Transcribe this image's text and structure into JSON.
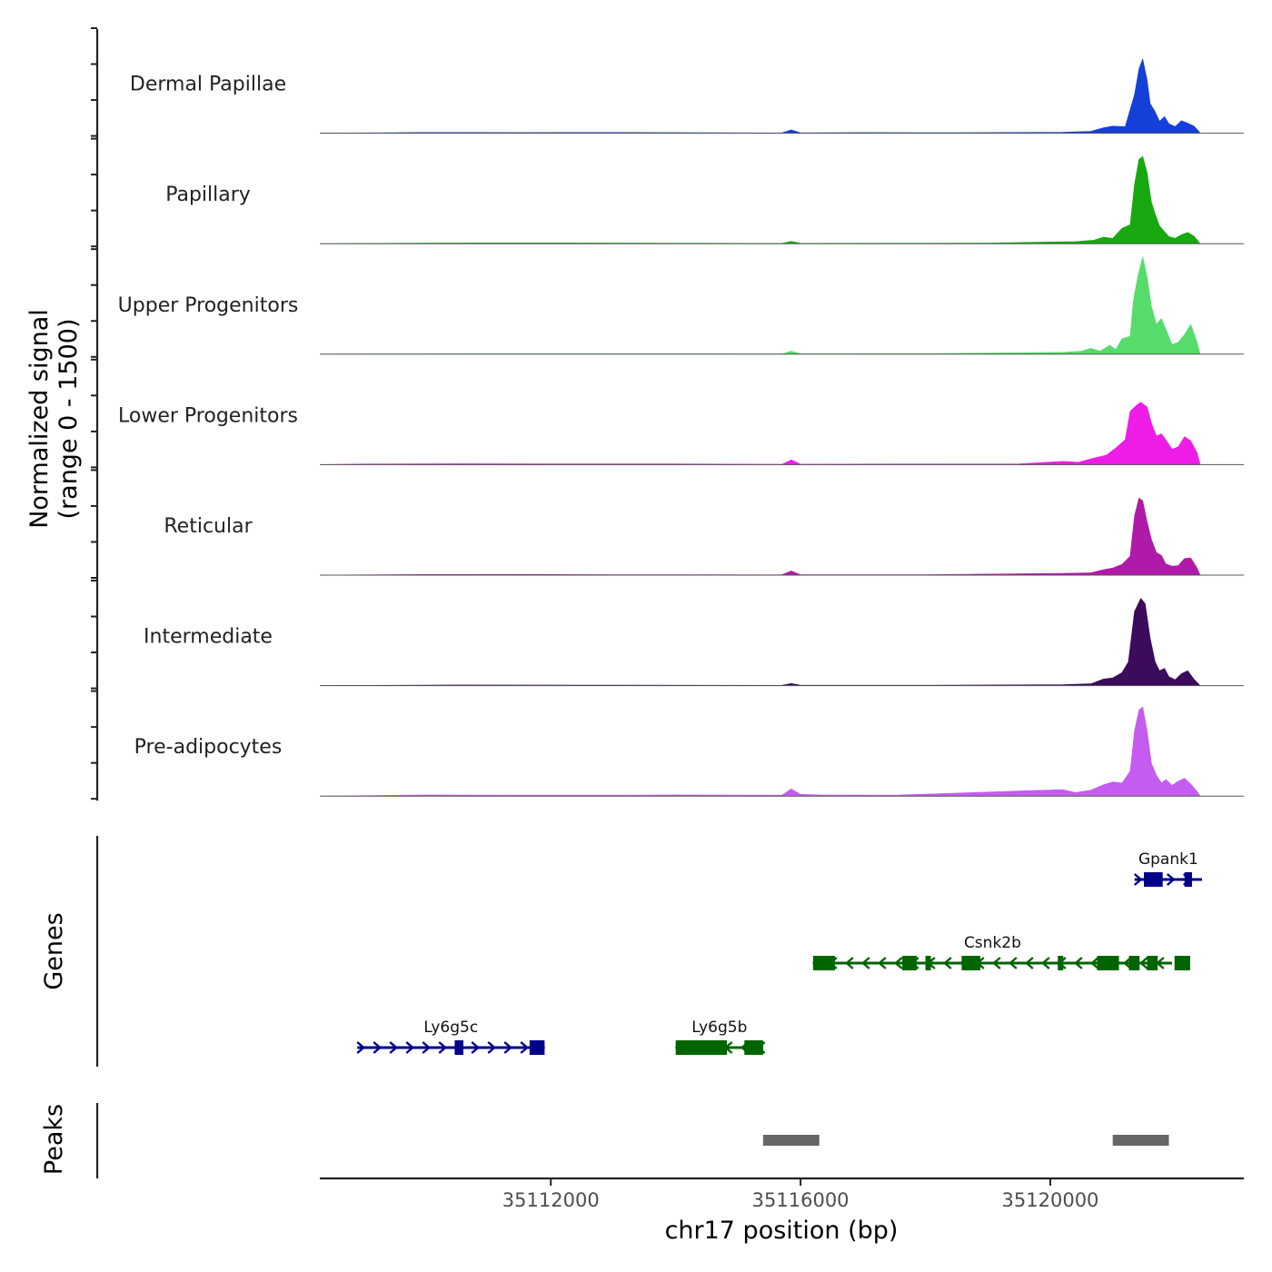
{
  "chart_data": {
    "type": "area",
    "title": "",
    "chromosome": "chr17",
    "xlabel": "chr17 position (bp)",
    "ylabel": "Normalized signal",
    "ylabel_range": "(range 0 - 1500)",
    "xlim": [
      35108300,
      35123100
    ],
    "ylim": [
      0,
      1500
    ],
    "x_ticks": [
      {
        "value": 35112000,
        "label": "35112000"
      },
      {
        "value": 35116000,
        "label": "35116000"
      },
      {
        "value": 35120000,
        "label": "35120000"
      }
    ],
    "series": [
      {
        "name": "Dermal Papillae",
        "color": "#1540d8",
        "points": [
          [
            35108300,
            0
          ],
          [
            35110000,
            12
          ],
          [
            35111500,
            10
          ],
          [
            35113000,
            12
          ],
          [
            35115700,
            4
          ],
          [
            35115850,
            55
          ],
          [
            35116000,
            6
          ],
          [
            35117000,
            10
          ],
          [
            35118500,
            8
          ],
          [
            35120200,
            15
          ],
          [
            35120650,
            30
          ],
          [
            35120850,
            90
          ],
          [
            35121000,
            120
          ],
          [
            35121200,
            110
          ],
          [
            35121350,
            650
          ],
          [
            35121420,
            1080
          ],
          [
            35121480,
            1250
          ],
          [
            35121550,
            900
          ],
          [
            35121600,
            500
          ],
          [
            35121680,
            360
          ],
          [
            35121750,
            200
          ],
          [
            35121830,
            280
          ],
          [
            35121900,
            160
          ],
          [
            35122000,
            110
          ],
          [
            35122100,
            210
          ],
          [
            35122200,
            170
          ],
          [
            35122300,
            120
          ],
          [
            35122380,
            30
          ],
          [
            35122400,
            0
          ]
        ]
      },
      {
        "name": "Papillary",
        "color": "#17a90f",
        "points": [
          [
            35108300,
            0
          ],
          [
            35110000,
            10
          ],
          [
            35112000,
            12
          ],
          [
            35114000,
            8
          ],
          [
            35115700,
            4
          ],
          [
            35115850,
            40
          ],
          [
            35116000,
            6
          ],
          [
            35117500,
            8
          ],
          [
            35119000,
            10
          ],
          [
            35120400,
            35
          ],
          [
            35120700,
            60
          ],
          [
            35120850,
            110
          ],
          [
            35121000,
            90
          ],
          [
            35121150,
            260
          ],
          [
            35121280,
            320
          ],
          [
            35121350,
            1000
          ],
          [
            35121420,
            1420
          ],
          [
            35121480,
            1470
          ],
          [
            35121550,
            1200
          ],
          [
            35121620,
            700
          ],
          [
            35121680,
            500
          ],
          [
            35121750,
            300
          ],
          [
            35121830,
            200
          ],
          [
            35121900,
            120
          ],
          [
            35122000,
            90
          ],
          [
            35122100,
            150
          ],
          [
            35122200,
            190
          ],
          [
            35122300,
            130
          ],
          [
            35122400,
            0
          ]
        ]
      },
      {
        "name": "Upper Progenitors",
        "color": "#56dc6b",
        "points": [
          [
            35108300,
            0
          ],
          [
            35110500,
            6
          ],
          [
            35113000,
            6
          ],
          [
            35115700,
            4
          ],
          [
            35115850,
            50
          ],
          [
            35116000,
            6
          ],
          [
            35118000,
            8
          ],
          [
            35120200,
            30
          ],
          [
            35120500,
            50
          ],
          [
            35120650,
            100
          ],
          [
            35120800,
            50
          ],
          [
            35120950,
            150
          ],
          [
            35121050,
            80
          ],
          [
            35121150,
            260
          ],
          [
            35121280,
            300
          ],
          [
            35121330,
            900
          ],
          [
            35121400,
            1300
          ],
          [
            35121480,
            1640
          ],
          [
            35121550,
            1300
          ],
          [
            35121620,
            800
          ],
          [
            35121700,
            500
          ],
          [
            35121780,
            600
          ],
          [
            35121850,
            420
          ],
          [
            35121950,
            160
          ],
          [
            35122050,
            200
          ],
          [
            35122150,
            330
          ],
          [
            35122250,
            500
          ],
          [
            35122350,
            200
          ],
          [
            35122400,
            0
          ]
        ]
      },
      {
        "name": "Lower Progenitors",
        "color": "#ee1ce6",
        "points": [
          [
            35108300,
            0
          ],
          [
            35109000,
            10
          ],
          [
            35110500,
            15
          ],
          [
            35112000,
            12
          ],
          [
            35114000,
            12
          ],
          [
            35115700,
            5
          ],
          [
            35115850,
            80
          ],
          [
            35116000,
            8
          ],
          [
            35117500,
            10
          ],
          [
            35119500,
            12
          ],
          [
            35120200,
            55
          ],
          [
            35120450,
            40
          ],
          [
            35120700,
            110
          ],
          [
            35120900,
            160
          ],
          [
            35121050,
            280
          ],
          [
            35121200,
            420
          ],
          [
            35121280,
            900
          ],
          [
            35121380,
            1000
          ],
          [
            35121450,
            1050
          ],
          [
            35121550,
            970
          ],
          [
            35121620,
            700
          ],
          [
            35121700,
            480
          ],
          [
            35121780,
            520
          ],
          [
            35121850,
            420
          ],
          [
            35121950,
            260
          ],
          [
            35122050,
            300
          ],
          [
            35122150,
            470
          ],
          [
            35122250,
            400
          ],
          [
            35122350,
            200
          ],
          [
            35122400,
            0
          ]
        ]
      },
      {
        "name": "Reticular",
        "color": "#b01aa8",
        "points": [
          [
            35108300,
            0
          ],
          [
            35110000,
            10
          ],
          [
            35111500,
            12
          ],
          [
            35113000,
            8
          ],
          [
            35115700,
            4
          ],
          [
            35115850,
            70
          ],
          [
            35116000,
            6
          ],
          [
            35118000,
            8
          ],
          [
            35120200,
            30
          ],
          [
            35120650,
            40
          ],
          [
            35120850,
            90
          ],
          [
            35121000,
            120
          ],
          [
            35121150,
            180
          ],
          [
            35121280,
            320
          ],
          [
            35121350,
            1000
          ],
          [
            35121420,
            1300
          ],
          [
            35121480,
            1250
          ],
          [
            35121550,
            900
          ],
          [
            35121620,
            600
          ],
          [
            35121700,
            380
          ],
          [
            35121780,
            330
          ],
          [
            35121850,
            190
          ],
          [
            35121950,
            150
          ],
          [
            35122050,
            160
          ],
          [
            35122150,
            280
          ],
          [
            35122250,
            290
          ],
          [
            35122350,
            120
          ],
          [
            35122400,
            0
          ]
        ]
      },
      {
        "name": "Intermediate",
        "color": "#3c0b5c",
        "points": [
          [
            35108300,
            0
          ],
          [
            35110500,
            10
          ],
          [
            35113000,
            8
          ],
          [
            35115700,
            4
          ],
          [
            35115850,
            35
          ],
          [
            35116000,
            6
          ],
          [
            35118000,
            6
          ],
          [
            35120200,
            15
          ],
          [
            35120650,
            30
          ],
          [
            35120850,
            110
          ],
          [
            35121000,
            130
          ],
          [
            35121150,
            220
          ],
          [
            35121250,
            400
          ],
          [
            35121350,
            1250
          ],
          [
            35121450,
            1470
          ],
          [
            35121520,
            1380
          ],
          [
            35121600,
            800
          ],
          [
            35121680,
            400
          ],
          [
            35121750,
            250
          ],
          [
            35121830,
            290
          ],
          [
            35121900,
            150
          ],
          [
            35122000,
            100
          ],
          [
            35122100,
            200
          ],
          [
            35122200,
            250
          ],
          [
            35122300,
            110
          ],
          [
            35122400,
            0
          ]
        ]
      },
      {
        "name": "Pre-adipocytes",
        "color": "#c55cf2",
        "points": [
          [
            35108300,
            0
          ],
          [
            35110000,
            20
          ],
          [
            35111500,
            15
          ],
          [
            35113000,
            15
          ],
          [
            35114000,
            20
          ],
          [
            35115700,
            15
          ],
          [
            35115850,
            120
          ],
          [
            35116000,
            30
          ],
          [
            35116300,
            20
          ],
          [
            35117500,
            15
          ],
          [
            35120200,
            110
          ],
          [
            35120400,
            60
          ],
          [
            35120650,
            100
          ],
          [
            35120850,
            190
          ],
          [
            35121000,
            240
          ],
          [
            35121150,
            220
          ],
          [
            35121280,
            420
          ],
          [
            35121350,
            1100
          ],
          [
            35121420,
            1450
          ],
          [
            35121480,
            1500
          ],
          [
            35121550,
            1100
          ],
          [
            35121620,
            550
          ],
          [
            35121700,
            350
          ],
          [
            35121780,
            220
          ],
          [
            35121850,
            280
          ],
          [
            35121950,
            180
          ],
          [
            35122050,
            250
          ],
          [
            35122150,
            300
          ],
          [
            35122250,
            200
          ],
          [
            35122350,
            80
          ],
          [
            35122400,
            0
          ]
        ]
      }
    ],
    "genes_track_label": "Genes",
    "genes": [
      {
        "name": "Gpank1",
        "strand": "+",
        "color": "#00008b",
        "row": 1,
        "start": 35121350,
        "end": 35122430,
        "exons": [
          [
            35121500,
            35121800
          ],
          [
            35122150,
            35122270
          ]
        ]
      },
      {
        "name": "Csnk2b",
        "strand": "-",
        "color": "#006400",
        "row": 2,
        "start": 35116200,
        "end": 35121950,
        "exons": [
          [
            35116200,
            35116550
          ],
          [
            35117630,
            35117860
          ],
          [
            35118000,
            35118080
          ],
          [
            35118580,
            35118880
          ],
          [
            35120120,
            35120200
          ],
          [
            35120750,
            35121100
          ],
          [
            35121260,
            35121430
          ],
          [
            35121550,
            35121720
          ],
          [
            35121990,
            35122240
          ]
        ]
      },
      {
        "name": "Ly6g5c",
        "strand": "+",
        "color": "#00008b",
        "row": 3,
        "start": 35108900,
        "end": 35111900,
        "exons": [
          [
            35110460,
            35110600
          ],
          [
            35111660,
            35111900
          ]
        ]
      },
      {
        "name": "Ly6g5b",
        "strand": "-",
        "color": "#006400",
        "row": 3,
        "start": 35114000,
        "end": 35115400,
        "exons": [
          [
            35114000,
            35114820
          ],
          [
            35115100,
            35115400
          ]
        ]
      }
    ],
    "peaks_track_label": "Peaks",
    "peaks_color": "#666666",
    "peaks": [
      [
        35115400,
        35116300
      ],
      [
        35121000,
        35121900
      ]
    ]
  }
}
